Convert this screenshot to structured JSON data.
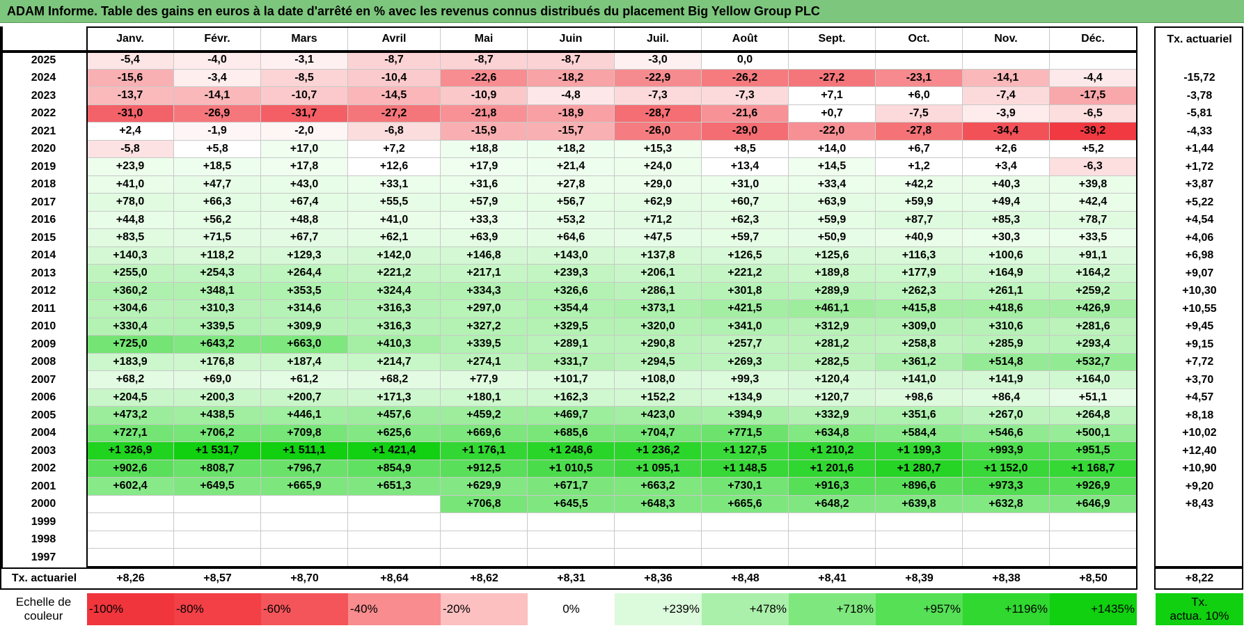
{
  "title": "ADAM Informe. Table des gains en euros à la date d'arrêté en % avec les revenus connus distribués du placement Big Yellow Group PLC",
  "months": [
    "Janv.",
    "Févr.",
    "Mars",
    "Avril",
    "Mai",
    "Juin",
    "Juil.",
    "Août",
    "Sept.",
    "Oct.",
    "Nov.",
    "Déc."
  ],
  "annual_header": "Tx. actuariel",
  "rows": [
    {
      "year": "2025",
      "cells": [
        "-5,4",
        "-4,0",
        "-3,1",
        "-8,7",
        "-8,7",
        "-8,7",
        "-3,0",
        "0,0",
        "",
        "",
        "",
        ""
      ],
      "annual": ""
    },
    {
      "year": "2024",
      "cells": [
        "-15,6",
        "-3,4",
        "-8,5",
        "-10,4",
        "-22,6",
        "-18,2",
        "-22,9",
        "-26,2",
        "-27,2",
        "-23,1",
        "-14,1",
        "-4,4"
      ],
      "annual": "-15,72"
    },
    {
      "year": "2023",
      "cells": [
        "-13,7",
        "-14,1",
        "-10,7",
        "-14,5",
        "-10,9",
        "-4,8",
        "-7,3",
        "-7,3",
        "+7,1",
        "+6,0",
        "-7,4",
        "-17,5"
      ],
      "annual": "-3,78"
    },
    {
      "year": "2022",
      "cells": [
        "-31,0",
        "-26,9",
        "-31,7",
        "-27,2",
        "-21,8",
        "-18,9",
        "-28,7",
        "-21,6",
        "+0,7",
        "-7,5",
        "-3,9",
        "-6,5"
      ],
      "annual": "-5,81"
    },
    {
      "year": "2021",
      "cells": [
        "+2,4",
        "-1,9",
        "-2,0",
        "-6,8",
        "-15,9",
        "-15,7",
        "-26,0",
        "-29,0",
        "-22,0",
        "-27,8",
        "-34,4",
        "-39,2"
      ],
      "annual": "-4,33"
    },
    {
      "year": "2020",
      "cells": [
        "-5,8",
        "+5,8",
        "+17,0",
        "+7,2",
        "+18,8",
        "+18,2",
        "+15,3",
        "+8,5",
        "+14,0",
        "+6,7",
        "+2,6",
        "+5,2"
      ],
      "annual": "+1,44"
    },
    {
      "year": "2019",
      "cells": [
        "+23,9",
        "+18,5",
        "+17,8",
        "+12,6",
        "+17,9",
        "+21,4",
        "+24,0",
        "+13,4",
        "+14,5",
        "+1,2",
        "+3,4",
        "-6,3"
      ],
      "annual": "+1,72"
    },
    {
      "year": "2018",
      "cells": [
        "+41,0",
        "+47,7",
        "+43,0",
        "+33,1",
        "+31,6",
        "+27,8",
        "+29,0",
        "+31,0",
        "+33,4",
        "+42,2",
        "+40,3",
        "+39,8"
      ],
      "annual": "+3,87"
    },
    {
      "year": "2017",
      "cells": [
        "+78,0",
        "+66,3",
        "+67,4",
        "+55,5",
        "+57,9",
        "+56,7",
        "+62,9",
        "+60,7",
        "+63,9",
        "+59,9",
        "+49,4",
        "+42,4"
      ],
      "annual": "+5,22"
    },
    {
      "year": "2016",
      "cells": [
        "+44,8",
        "+56,2",
        "+48,8",
        "+41,0",
        "+33,3",
        "+53,2",
        "+71,2",
        "+62,3",
        "+59,9",
        "+87,7",
        "+85,3",
        "+78,7"
      ],
      "annual": "+4,54"
    },
    {
      "year": "2015",
      "cells": [
        "+83,5",
        "+71,5",
        "+67,7",
        "+62,1",
        "+63,9",
        "+64,6",
        "+47,5",
        "+59,7",
        "+50,9",
        "+40,9",
        "+30,3",
        "+33,5"
      ],
      "annual": "+4,06"
    },
    {
      "year": "2014",
      "cells": [
        "+140,3",
        "+118,2",
        "+129,3",
        "+142,0",
        "+146,8",
        "+143,0",
        "+137,8",
        "+126,5",
        "+125,6",
        "+116,3",
        "+100,6",
        "+91,1"
      ],
      "annual": "+6,98"
    },
    {
      "year": "2013",
      "cells": [
        "+255,0",
        "+254,3",
        "+264,4",
        "+221,2",
        "+217,1",
        "+239,3",
        "+206,1",
        "+221,2",
        "+189,8",
        "+177,9",
        "+164,9",
        "+164,2"
      ],
      "annual": "+9,07"
    },
    {
      "year": "2012",
      "cells": [
        "+360,2",
        "+348,1",
        "+353,5",
        "+324,4",
        "+334,3",
        "+326,6",
        "+286,1",
        "+301,8",
        "+289,9",
        "+262,3",
        "+261,1",
        "+259,2"
      ],
      "annual": "+10,30"
    },
    {
      "year": "2011",
      "cells": [
        "+304,6",
        "+310,3",
        "+314,6",
        "+316,3",
        "+297,0",
        "+354,4",
        "+373,1",
        "+421,5",
        "+461,1",
        "+415,8",
        "+418,6",
        "+426,9"
      ],
      "annual": "+10,55"
    },
    {
      "year": "2010",
      "cells": [
        "+330,4",
        "+339,5",
        "+309,9",
        "+316,3",
        "+327,2",
        "+329,5",
        "+320,0",
        "+341,0",
        "+312,9",
        "+309,0",
        "+310,6",
        "+281,6"
      ],
      "annual": "+9,45"
    },
    {
      "year": "2009",
      "cells": [
        "+725,0",
        "+643,2",
        "+663,0",
        "+410,3",
        "+339,5",
        "+289,1",
        "+290,8",
        "+257,7",
        "+281,2",
        "+258,8",
        "+285,9",
        "+293,4"
      ],
      "annual": "+9,15"
    },
    {
      "year": "2008",
      "cells": [
        "+183,9",
        "+176,8",
        "+187,4",
        "+214,7",
        "+274,1",
        "+331,7",
        "+294,5",
        "+269,3",
        "+282,5",
        "+361,2",
        "+514,8",
        "+532,7"
      ],
      "annual": "+7,72"
    },
    {
      "year": "2007",
      "cells": [
        "+68,2",
        "+69,0",
        "+61,2",
        "+68,2",
        "+77,9",
        "+101,7",
        "+108,0",
        "+99,3",
        "+120,4",
        "+141,0",
        "+141,9",
        "+164,0"
      ],
      "annual": "+3,70"
    },
    {
      "year": "2006",
      "cells": [
        "+204,5",
        "+200,3",
        "+200,7",
        "+171,3",
        "+180,1",
        "+162,3",
        "+152,2",
        "+134,9",
        "+120,7",
        "+98,6",
        "+86,4",
        "+51,1"
      ],
      "annual": "+4,57"
    },
    {
      "year": "2005",
      "cells": [
        "+473,2",
        "+438,5",
        "+446,1",
        "+457,6",
        "+459,2",
        "+469,7",
        "+423,0",
        "+394,9",
        "+332,9",
        "+351,6",
        "+267,0",
        "+264,8"
      ],
      "annual": "+8,18"
    },
    {
      "year": "2004",
      "cells": [
        "+727,1",
        "+706,2",
        "+709,8",
        "+625,6",
        "+669,6",
        "+685,6",
        "+704,7",
        "+771,5",
        "+634,8",
        "+584,4",
        "+546,6",
        "+500,1"
      ],
      "annual": "+10,02"
    },
    {
      "year": "2003",
      "cells": [
        "+1 326,9",
        "+1 531,7",
        "+1 511,1",
        "+1 421,4",
        "+1 176,1",
        "+1 248,6",
        "+1 236,2",
        "+1 127,5",
        "+1 210,2",
        "+1 199,3",
        "+993,9",
        "+951,5"
      ],
      "annual": "+12,40"
    },
    {
      "year": "2002",
      "cells": [
        "+902,6",
        "+808,7",
        "+796,7",
        "+854,9",
        "+912,5",
        "+1 010,5",
        "+1 095,1",
        "+1 148,5",
        "+1 201,6",
        "+1 280,7",
        "+1 152,0",
        "+1 168,7"
      ],
      "annual": "+10,90"
    },
    {
      "year": "2001",
      "cells": [
        "+602,4",
        "+649,5",
        "+665,9",
        "+651,3",
        "+629,9",
        "+671,7",
        "+663,2",
        "+730,1",
        "+916,3",
        "+896,6",
        "+973,3",
        "+926,9"
      ],
      "annual": "+9,20"
    },
    {
      "year": "2000",
      "cells": [
        "",
        "",
        "",
        "",
        "+706,8",
        "+645,5",
        "+648,3",
        "+665,6",
        "+648,2",
        "+639,8",
        "+632,8",
        "+646,9"
      ],
      "annual": "+8,43"
    },
    {
      "year": "1999",
      "cells": [
        "",
        "",
        "",
        "",
        "",
        "",
        "",
        "",
        "",
        "",
        "",
        ""
      ],
      "annual": ""
    },
    {
      "year": "1998",
      "cells": [
        "",
        "",
        "",
        "",
        "",
        "",
        "",
        "",
        "",
        "",
        "",
        ""
      ],
      "annual": ""
    },
    {
      "year": "1997",
      "cells": [
        "",
        "",
        "",
        "",
        "",
        "",
        "",
        "",
        "",
        "",
        "",
        ""
      ],
      "annual": ""
    }
  ],
  "footer": {
    "label": "Tx. actuariel",
    "cells": [
      "+8,26",
      "+8,57",
      "+8,70",
      "+8,64",
      "+8,62",
      "+8,31",
      "+8,36",
      "+8,48",
      "+8,41",
      "+8,39",
      "+8,38",
      "+8,50"
    ],
    "annual": "+8,22"
  },
  "legend": {
    "label_line1": "Echelle de",
    "label_line2": "couleur",
    "items": [
      {
        "text": "-100%",
        "color": "#f0353c",
        "align": "left"
      },
      {
        "text": "-80%",
        "color": "#f24046",
        "align": "left"
      },
      {
        "text": "-60%",
        "color": "#f4555a",
        "align": "left"
      },
      {
        "text": "-40%",
        "color": "#f88c8e",
        "align": "left"
      },
      {
        "text": "-20%",
        "color": "#fcc0c1",
        "align": "left"
      },
      {
        "text": "0%",
        "color": "#ffffff",
        "align": "center"
      },
      {
        "text": "+239%",
        "color": "#dcfadc",
        "align": "right"
      },
      {
        "text": "+478%",
        "color": "#aaf0aa",
        "align": "right"
      },
      {
        "text": "+718%",
        "color": "#7ee87e",
        "align": "right"
      },
      {
        "text": "+957%",
        "color": "#55e055",
        "align": "right"
      },
      {
        "text": "+1196%",
        "color": "#30d830",
        "align": "right"
      },
      {
        "text": "+1435%",
        "color": "#10d010",
        "align": "right"
      }
    ],
    "annual_line1": "Tx.",
    "annual_line2": "actua. 10%",
    "annual_color": "#10d010"
  },
  "colors": {
    "title_bg": "#7dc67d"
  }
}
